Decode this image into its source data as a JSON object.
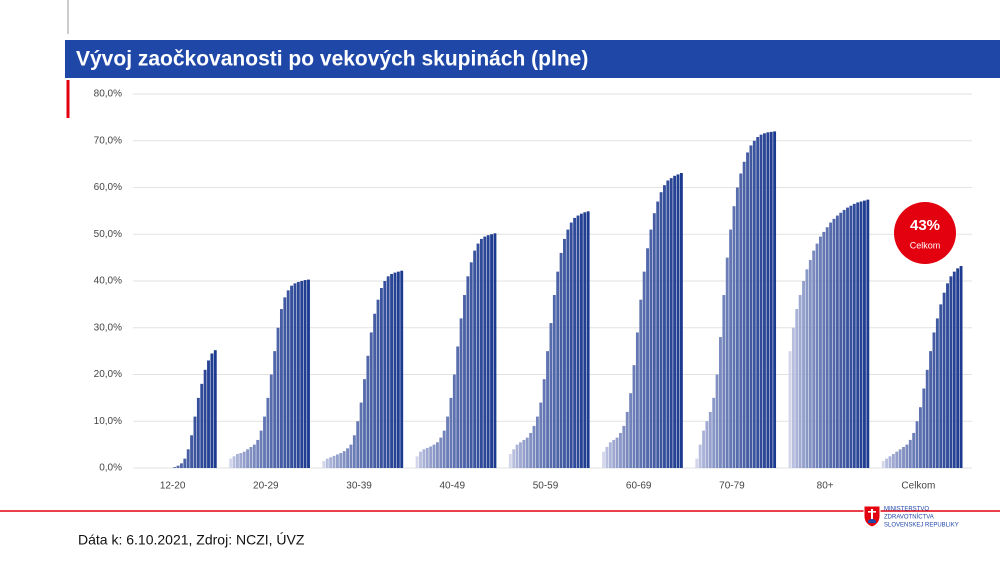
{
  "chart_data": {
    "type": "bar",
    "title": "Vývoj zaočkovanosti po vekových skupinách (plne)",
    "ylim": [
      0,
      80
    ],
    "yticks": [
      {
        "value": 0,
        "label": "0,0%"
      },
      {
        "value": 10,
        "label": "10,0%"
      },
      {
        "value": 20,
        "label": "20,0%"
      },
      {
        "value": 30,
        "label": "30,0%"
      },
      {
        "value": 40,
        "label": "40,0%"
      },
      {
        "value": 50,
        "label": "50,0%"
      },
      {
        "value": 60,
        "label": "60,0%"
      },
      {
        "value": 70,
        "label": "70,0%"
      },
      {
        "value": 80,
        "label": "80,0%"
      }
    ],
    "grid": true,
    "color_start": "#d4d6ec",
    "color_end": "#1c3a8f",
    "groups": [
      {
        "name": "12-20",
        "values": [
          0,
          0,
          0,
          0,
          0,
          0,
          0,
          0,
          0,
          0,
          0,
          0.2,
          0.5,
          1,
          2,
          4,
          7,
          11,
          15,
          18,
          21,
          23,
          24.5,
          25.2
        ]
      },
      {
        "name": "20-29",
        "values": [
          2,
          2.5,
          3,
          3.2,
          3.5,
          4,
          4.5,
          5,
          6,
          8,
          11,
          15,
          20,
          25,
          30,
          34,
          36.5,
          38,
          39,
          39.5,
          39.8,
          40,
          40.2,
          40.3
        ]
      },
      {
        "name": "30-39",
        "values": [
          1.5,
          2,
          2.3,
          2.6,
          2.9,
          3.2,
          3.6,
          4.2,
          5,
          7,
          10,
          14,
          19,
          24,
          29,
          33,
          36,
          38.5,
          40,
          41,
          41.5,
          41.8,
          42,
          42.2
        ]
      },
      {
        "name": "40-49",
        "values": [
          2.5,
          3.5,
          4,
          4.3,
          4.6,
          5,
          5.5,
          6.5,
          8,
          11,
          15,
          20,
          26,
          32,
          37,
          41,
          44,
          46.5,
          48,
          49,
          49.5,
          49.8,
          50,
          50.2
        ]
      },
      {
        "name": "50-59",
        "values": [
          3,
          4,
          5,
          5.5,
          6,
          6.5,
          7.5,
          9,
          11,
          14,
          19,
          25,
          31,
          37,
          42,
          46,
          49,
          51,
          52.5,
          53.5,
          54,
          54.4,
          54.7,
          54.9
        ]
      },
      {
        "name": "60-69",
        "values": [
          3.5,
          4.5,
          5.5,
          6,
          6.5,
          7.5,
          9,
          12,
          16,
          22,
          29,
          36,
          42,
          47,
          51,
          54.5,
          57,
          59,
          60.5,
          61.5,
          62,
          62.5,
          62.8,
          63.1
        ]
      },
      {
        "name": "70-79",
        "values": [
          2,
          5,
          8,
          10,
          12,
          15,
          20,
          28,
          37,
          45,
          51,
          56,
          60,
          63,
          65.5,
          67.5,
          69,
          70,
          70.8,
          71.3,
          71.6,
          71.8,
          71.9,
          72
        ]
      },
      {
        "name": "80+",
        "values": [
          25,
          30,
          34,
          37,
          40,
          42.5,
          44.5,
          46.5,
          48,
          49.5,
          50.5,
          51.5,
          52.5,
          53.3,
          54,
          54.6,
          55.2,
          55.7,
          56.1,
          56.5,
          56.8,
          57,
          57.2,
          57.4
        ]
      },
      {
        "name": "Celkom",
        "values": [
          1.5,
          2,
          2.5,
          3,
          3.5,
          4,
          4.5,
          5,
          6,
          7.5,
          10,
          13,
          17,
          21,
          25,
          29,
          32,
          35,
          37.5,
          39.5,
          41,
          42,
          42.7,
          43.2
        ]
      }
    ],
    "annotation": {
      "label": "43%",
      "text": "Celkom"
    }
  },
  "footer": {
    "source": "Dáta k: 6.10.2021, Zdroj: NCZI, ÚVZ",
    "logo": [
      "MINISTERSTVO",
      "ZDRAVOTNÍCTVA",
      "SLOVENSKEJ REPUBLIKY"
    ]
  }
}
